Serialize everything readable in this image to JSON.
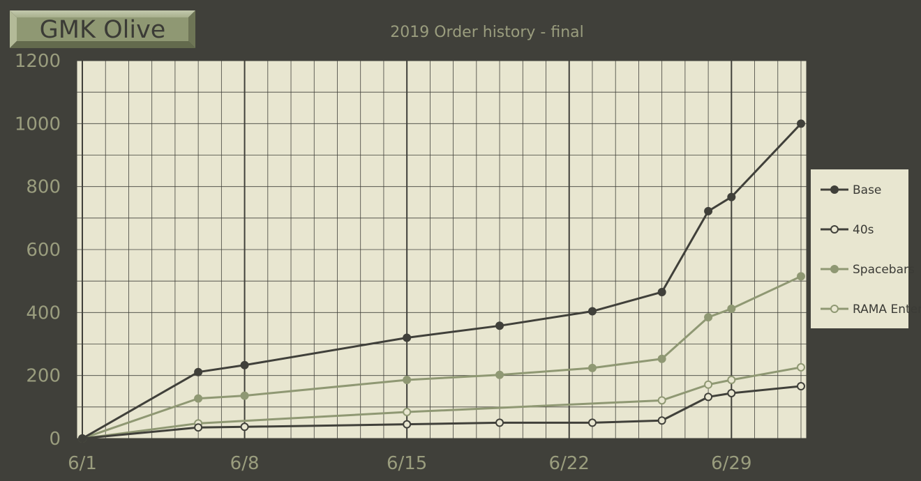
{
  "logo_text": "GMK Olive",
  "colors": {
    "background": "#40403a",
    "plot_bg": "#e8e6d0",
    "grid": "#40403a",
    "axis_text": "#9a9d7e",
    "title_text": "#9a9d7e",
    "logo_bg": "#8f9873",
    "logo_text": "#3b3b36",
    "legend_bg": "#e8e6d0",
    "dark_series": "#40403a",
    "light_series": "#8f9873"
  },
  "chart_data": {
    "type": "line",
    "title": "2019 Order history - final",
    "xlabel": "",
    "ylabel": "",
    "ylim": [
      0,
      1200
    ],
    "xlim": [
      "2019-06-01",
      "2019-07-02"
    ],
    "yticks": [
      0,
      200,
      400,
      600,
      800,
      1000,
      1200
    ],
    "xticks": [
      {
        "date": "2019-06-01",
        "label": "6/1"
      },
      {
        "date": "2019-06-08",
        "label": "6/8"
      },
      {
        "date": "2019-06-15",
        "label": "6/15"
      },
      {
        "date": "2019-06-22",
        "label": "6/22"
      },
      {
        "date": "2019-06-29",
        "label": "6/29"
      }
    ],
    "grid": true,
    "legend_position": "right",
    "x": [
      "2019-06-01",
      "2019-06-06",
      "2019-06-08",
      "2019-06-15",
      "2019-06-19",
      "2019-06-23",
      "2019-06-26",
      "2019-06-28",
      "2019-06-29",
      "2019-07-02"
    ],
    "series": [
      {
        "name": "Base",
        "values": [
          0,
          211,
          233,
          320,
          358,
          404,
          465,
          722,
          767,
          1000
        ],
        "color": "#40403a",
        "marker": "filled"
      },
      {
        "name": "40s",
        "values": [
          0,
          35,
          37,
          45,
          50,
          50,
          57,
          132,
          144,
          166
        ],
        "color": "#40403a",
        "marker": "hollow"
      },
      {
        "name": "Spacebars",
        "values": [
          0,
          127,
          136,
          186,
          202,
          224,
          253,
          385,
          412,
          515
        ],
        "color": "#8f9873",
        "marker": "filled"
      },
      {
        "name": "RAMA Enter",
        "values": [
          0,
          48,
          null,
          84,
          null,
          null,
          121,
          171,
          186,
          226
        ],
        "color": "#8f9873",
        "marker": "hollow"
      }
    ]
  }
}
